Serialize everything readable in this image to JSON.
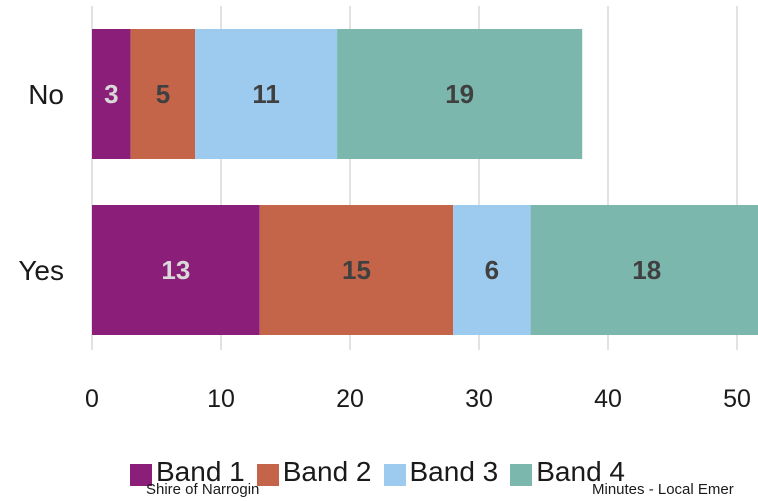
{
  "chart_data": {
    "type": "bar",
    "orientation": "horizontal",
    "stacked": true,
    "categories": [
      "No",
      "Yes"
    ],
    "series": [
      {
        "name": "Band 1",
        "values": [
          3,
          13
        ],
        "color": "#8b1e78",
        "label_color": "#d9d9d9"
      },
      {
        "name": "Band 2",
        "values": [
          5,
          15
        ],
        "color": "#c4654a",
        "label_color": "#404040"
      },
      {
        "name": "Band 3",
        "values": [
          11,
          6
        ],
        "color": "#9dcaef",
        "label_color": "#404040"
      },
      {
        "name": "Band 4",
        "values": [
          19,
          18
        ],
        "color": "#7bb7ad",
        "label_color": "#404040"
      }
    ],
    "xticks": [
      0,
      10,
      20,
      30,
      40,
      50
    ],
    "xlim": [
      0,
      52
    ],
    "grid": true,
    "legend_position": "bottom"
  },
  "footer": {
    "left": "Shire of Narrogin",
    "right": "Minutes - Local Emer"
  }
}
